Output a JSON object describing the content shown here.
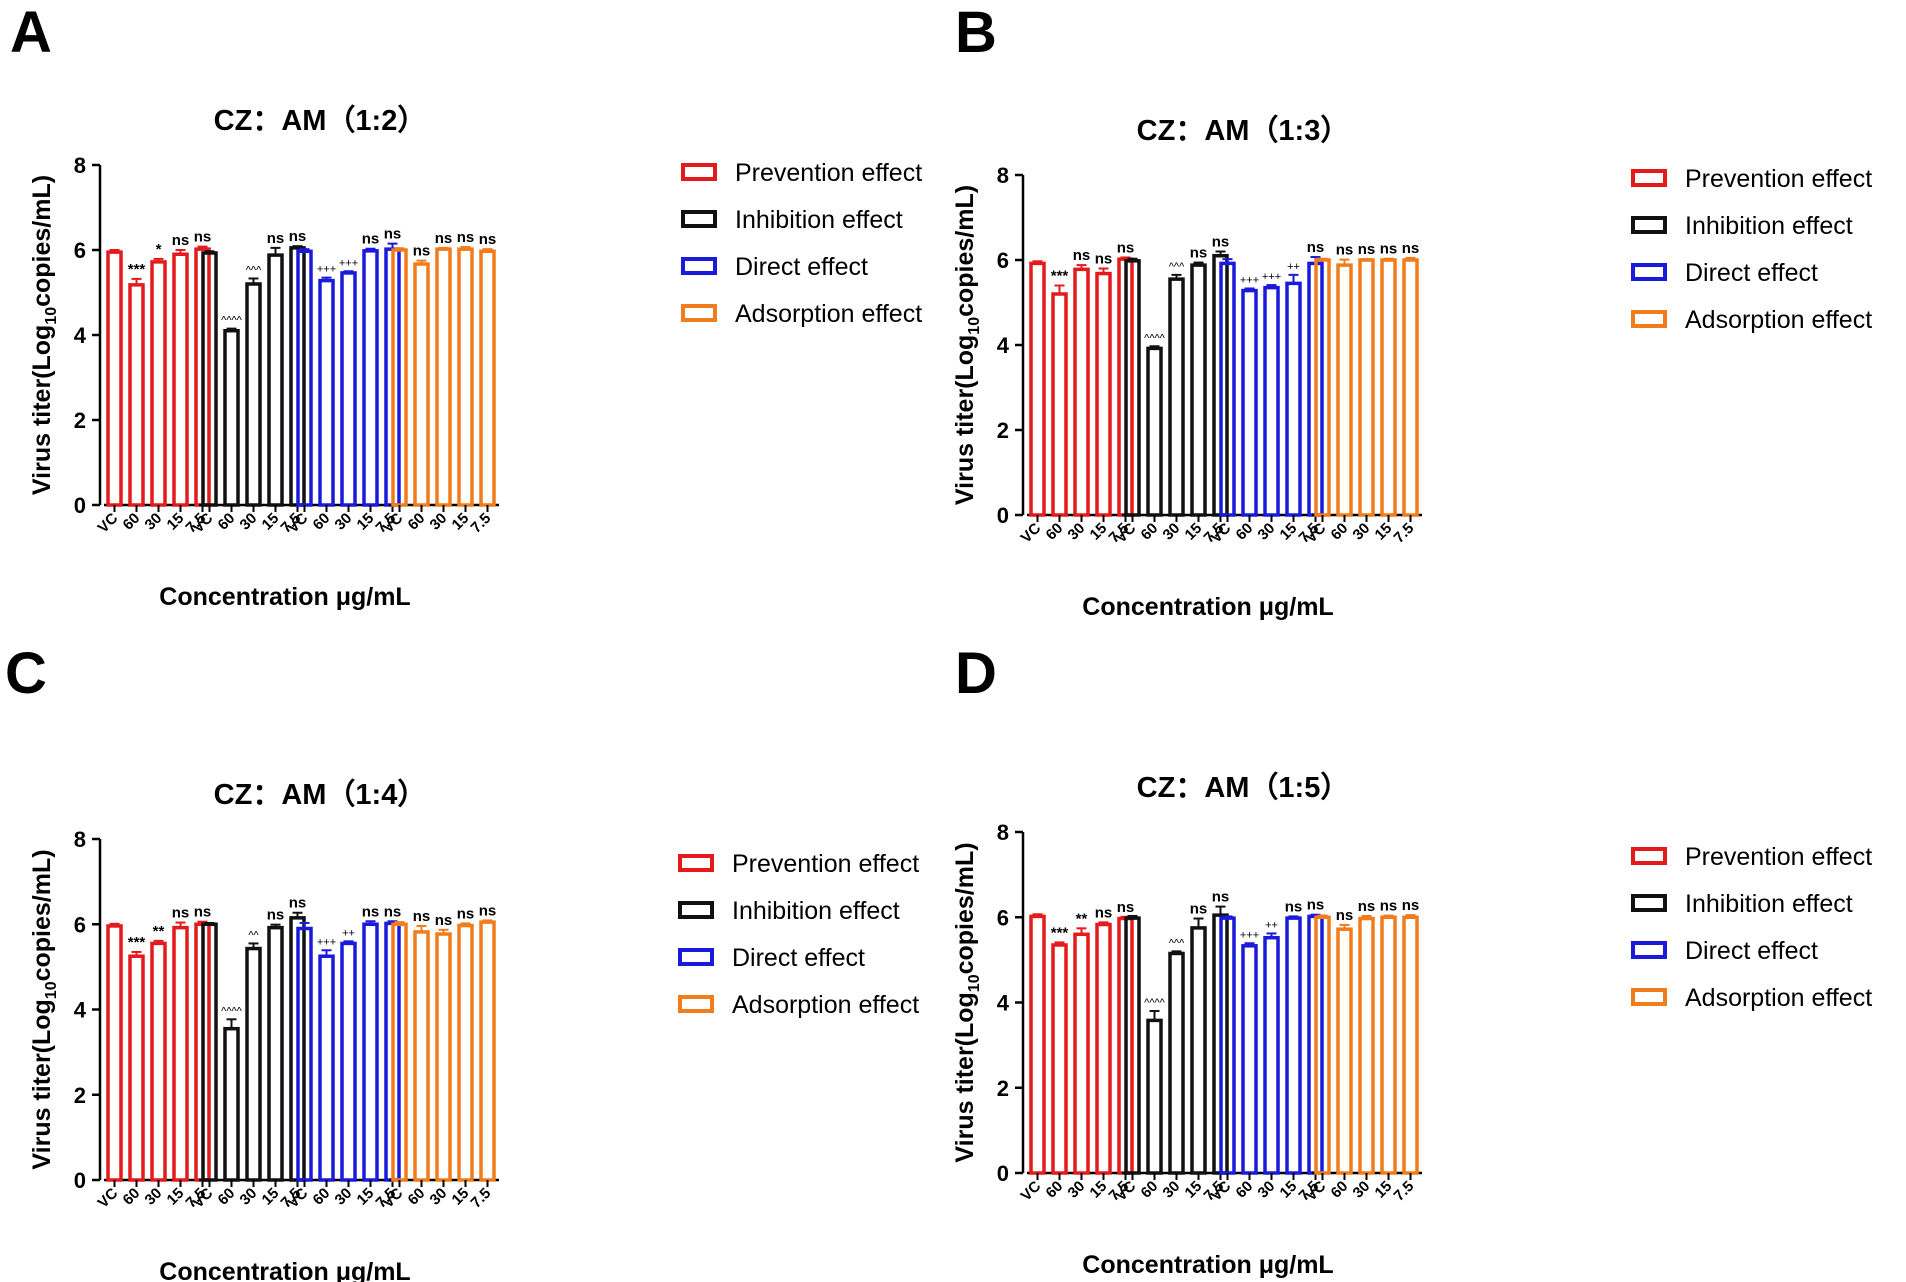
{
  "chart_data": [
    {
      "panel": "A",
      "type": "bar",
      "title": "CZ：AM（1:2）",
      "ylabel_main": "Virus titer(Log",
      "ylabel_sub": "10",
      "ylabel_end": "copies/mL)",
      "xlabel": "Concentration μg/mL",
      "ylim": [
        0,
        8
      ],
      "yticks": [
        "0",
        "2",
        "4",
        "6",
        "8"
      ],
      "categories": [
        "VC",
        "60",
        "30",
        "15",
        "7.5"
      ],
      "series": [
        {
          "name": "Prevention effect",
          "color": "#e41a1c",
          "values": [
            5.95,
            5.18,
            5.72,
            5.9,
            6.02
          ],
          "errors": [
            0.05,
            0.14,
            0.07,
            0.1,
            0.06
          ],
          "sig": [
            "",
            "***",
            "*",
            "ns",
            "ns"
          ]
        },
        {
          "name": "Inhibition effect",
          "color": "#111111",
          "values": [
            5.93,
            4.1,
            5.2,
            5.88,
            6.05
          ],
          "errors": [
            0.04,
            0.05,
            0.13,
            0.17,
            0.04
          ],
          "sig": [
            "",
            "^^^^",
            "^^^",
            "ns",
            "ns"
          ]
        },
        {
          "name": "Direct effect",
          "color": "#1a1adb",
          "values": [
            5.97,
            5.28,
            5.46,
            5.98,
            6.02
          ],
          "errors": [
            0.05,
            0.07,
            0.04,
            0.05,
            0.13
          ],
          "sig": [
            "",
            "+++",
            "+++",
            "ns",
            "ns"
          ]
        },
        {
          "name": "Adsorption effect",
          "color": "#f07c1c",
          "values": [
            6.0,
            5.67,
            6.02,
            6.02,
            5.97
          ],
          "errors": [
            0.04,
            0.08,
            0.03,
            0.05,
            0.05
          ],
          "sig": [
            "",
            "ns",
            "ns",
            "ns",
            "ns"
          ]
        }
      ]
    },
    {
      "panel": "B",
      "type": "bar",
      "title": "CZ：AM（1:3）",
      "ylabel_main": "Virus titer(Log",
      "ylabel_sub": "10",
      "ylabel_end": "copies/mL)",
      "xlabel": "Concentration μg/mL",
      "ylim": [
        0,
        8
      ],
      "yticks": [
        "0",
        "2",
        "4",
        "6",
        "8"
      ],
      "categories": [
        "VC",
        "60",
        "30",
        "15",
        "7.5"
      ],
      "series": [
        {
          "name": "Prevention effect",
          "color": "#e41a1c",
          "values": [
            5.92,
            5.2,
            5.78,
            5.68,
            6.02
          ],
          "errors": [
            0.05,
            0.2,
            0.1,
            0.12,
            0.04
          ],
          "sig": [
            "",
            "***",
            "ns",
            "ns",
            "ns"
          ]
        },
        {
          "name": "Inhibition effect",
          "color": "#111111",
          "values": [
            5.98,
            3.92,
            5.55,
            5.88,
            6.1
          ],
          "errors": [
            0.05,
            0.05,
            0.1,
            0.06,
            0.1
          ],
          "sig": [
            "",
            "^^^^",
            "^^^",
            "ns",
            "ns"
          ]
        },
        {
          "name": "Direct effect",
          "color": "#1a1adb",
          "values": [
            5.92,
            5.28,
            5.35,
            5.45,
            5.92
          ],
          "errors": [
            0.1,
            0.05,
            0.06,
            0.2,
            0.15
          ],
          "sig": [
            "",
            "+++",
            "+++",
            "++",
            "ns"
          ]
        },
        {
          "name": "Adsorption effect",
          "color": "#f07c1c",
          "values": [
            6.0,
            5.88,
            6.0,
            6.0,
            6.0
          ],
          "errors": [
            0.03,
            0.13,
            0.02,
            0.03,
            0.05
          ],
          "sig": [
            "",
            "ns",
            "ns",
            "ns",
            "ns"
          ]
        }
      ]
    },
    {
      "panel": "C",
      "type": "bar",
      "title": "CZ：AM（1:4）",
      "ylabel_main": "Virus titer(Log",
      "ylabel_sub": "10",
      "ylabel_end": "copies/mL)",
      "xlabel": "Concentration μg/mL",
      "ylim": [
        0,
        8
      ],
      "yticks": [
        "0",
        "2",
        "4",
        "6",
        "8"
      ],
      "categories": [
        "VC",
        "60",
        "30",
        "15",
        "7.5"
      ],
      "series": [
        {
          "name": "Prevention effect",
          "color": "#e41a1c",
          "values": [
            5.96,
            5.25,
            5.55,
            5.92,
            6.0
          ],
          "errors": [
            0.05,
            0.1,
            0.06,
            0.12,
            0.06
          ],
          "sig": [
            "",
            "***",
            "**",
            "ns",
            "ns"
          ]
        },
        {
          "name": "Inhibition effect",
          "color": "#111111",
          "values": [
            6.0,
            3.55,
            5.43,
            5.92,
            6.15
          ],
          "errors": [
            0.03,
            0.22,
            0.12,
            0.07,
            0.12
          ],
          "sig": [
            "",
            "^^^^",
            "^^",
            "ns",
            "ns"
          ]
        },
        {
          "name": "Direct effect",
          "color": "#1a1adb",
          "values": [
            5.9,
            5.25,
            5.55,
            6.0,
            6.02
          ],
          "errors": [
            0.13,
            0.14,
            0.05,
            0.07,
            0.05
          ],
          "sig": [
            "",
            "+++",
            "++",
            "ns",
            "ns"
          ]
        },
        {
          "name": "Adsorption effect",
          "color": "#f07c1c",
          "values": [
            6.0,
            5.82,
            5.77,
            5.97,
            6.05
          ],
          "errors": [
            0.05,
            0.14,
            0.1,
            0.05,
            0.04
          ],
          "sig": [
            "",
            "ns",
            "ns",
            "ns",
            "ns"
          ]
        }
      ]
    },
    {
      "panel": "D",
      "type": "bar",
      "title": "CZ：AM（1:5）",
      "ylabel_main": "Virus titer(Log",
      "ylabel_sub": "10",
      "ylabel_end": "copies/mL)",
      "xlabel": "Concentration μg/mL",
      "ylim": [
        0,
        8
      ],
      "yticks": [
        "0",
        "2",
        "4",
        "6",
        "8"
      ],
      "categories": [
        "VC",
        "60",
        "30",
        "15",
        "7.5"
      ],
      "series": [
        {
          "name": "Prevention effect",
          "color": "#e41a1c",
          "values": [
            6.02,
            5.35,
            5.6,
            5.83,
            5.97
          ],
          "errors": [
            0.05,
            0.06,
            0.14,
            0.05,
            0.04
          ],
          "sig": [
            "",
            "***",
            "**",
            "ns",
            "ns"
          ]
        },
        {
          "name": "Inhibition effect",
          "color": "#111111",
          "values": [
            5.98,
            3.58,
            5.15,
            5.75,
            6.05
          ],
          "errors": [
            0.05,
            0.22,
            0.05,
            0.22,
            0.2
          ],
          "sig": [
            "",
            "^^^^",
            "^^^",
            "ns",
            "ns"
          ]
        },
        {
          "name": "Direct effect",
          "color": "#1a1adb",
          "values": [
            5.98,
            5.33,
            5.52,
            5.98,
            6.02
          ],
          "errors": [
            0.04,
            0.06,
            0.1,
            0.04,
            0.04
          ],
          "sig": [
            "",
            "+++",
            "++",
            "ns",
            "ns"
          ]
        },
        {
          "name": "Adsorption effect",
          "color": "#f07c1c",
          "values": [
            6.0,
            5.72,
            5.97,
            6.0,
            6.0
          ],
          "errors": [
            0.04,
            0.1,
            0.06,
            0.04,
            0.05
          ],
          "sig": [
            "",
            "ns",
            "ns",
            "ns",
            "ns"
          ]
        }
      ]
    }
  ]
}
